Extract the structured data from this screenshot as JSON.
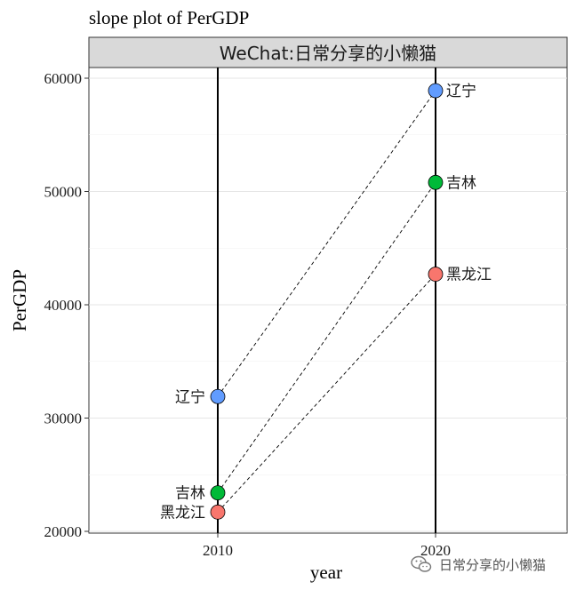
{
  "chart_data": {
    "type": "slope",
    "title": "slope plot of PerGDP",
    "facet_label": "WeChat:日常分享的小懒猫",
    "xlabel": "year",
    "ylabel": "PerGDP",
    "x_categories": [
      "2010",
      "2020"
    ],
    "ylim": [
      20000,
      60000
    ],
    "y_ticks": [
      "20000",
      "30000",
      "40000",
      "50000",
      "60000"
    ],
    "grid": true,
    "series": [
      {
        "name": "辽宁",
        "color": "#619CFF",
        "values": [
          31900,
          58900
        ]
      },
      {
        "name": "吉林",
        "color": "#00BA38",
        "values": [
          23400,
          50800
        ]
      },
      {
        "name": "黑龙江",
        "color": "#F8766D",
        "values": [
          21700,
          42700
        ]
      }
    ]
  },
  "watermark": {
    "text": "日常分享的小懒猫",
    "icon": "wechat-icon"
  }
}
